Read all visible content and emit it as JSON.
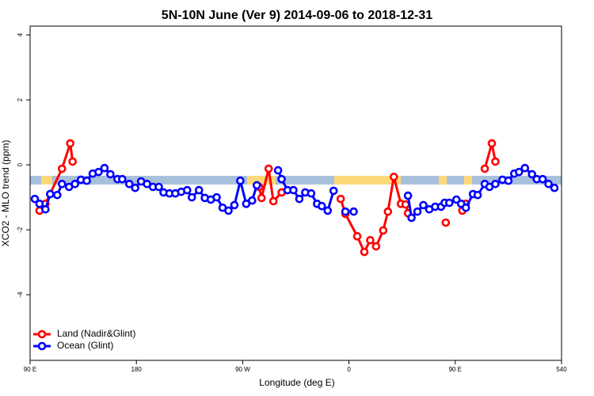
{
  "chart_data": {
    "type": "line",
    "title": "5N-10N June (Ver 9)   2014-09-06 to 2018-12-31",
    "x_label": "Longitude (deg E)",
    "y_label": "XCO2 - MLO trend (ppm)",
    "xlim": [
      90,
      540
    ],
    "xticks": [
      {
        "value": 90,
        "label": "90 E"
      },
      180,
      {
        "value": 270,
        "label": "90 W"
      },
      {
        "value": 360,
        "label": "0"
      },
      {
        "value": 450,
        "label": "90 E"
      },
      540
    ],
    "ylim": [
      -6.02,
      4.27
    ],
    "yticks": [
      -4,
      -2,
      0,
      2,
      4
    ],
    "legend": "bottomleft",
    "series": [
      {
        "name": "Land (Nadir&Glint)",
        "color": "#ff0000",
        "x": [
          98,
          103,
          117,
          124,
          126,
          200,
          284,
          286,
          292,
          296,
          303,
          330,
          353,
          357,
          367,
          373,
          378,
          383,
          389,
          393,
          398,
          404,
          408,
          410,
          425,
          442,
          450,
          456,
          459,
          467,
          475,
          481,
          484
        ],
        "values": [
          -1.41,
          -1.2,
          -0.12,
          0.66,
          0.1,
          null,
          -0.68,
          -1.02,
          -0.12,
          -1.12,
          -0.85,
          null,
          -1.05,
          -1.51,
          -2.2,
          -2.68,
          -2.32,
          -2.51,
          -2.02,
          -1.44,
          -0.37,
          -1.2,
          -1.22,
          -1.49,
          null,
          -1.78,
          null,
          -1.41,
          -1.2,
          null,
          -0.12,
          0.66,
          0.1
        ]
      },
      {
        "name": "Ocean (Glint)",
        "color": "#0000ff",
        "x": [
          94,
          98,
          103,
          107,
          113,
          117,
          123,
          128,
          133,
          138,
          143,
          148,
          153,
          158,
          164,
          168,
          174,
          179,
          184,
          189,
          194,
          199,
          203,
          208,
          213,
          218,
          223,
          227,
          233,
          238,
          243,
          248,
          253,
          258,
          263,
          268,
          273,
          278,
          282,
          291,
          300,
          303,
          308,
          313,
          318,
          323,
          328,
          333,
          337,
          342,
          347,
          352,
          357,
          364,
          387,
          410,
          413,
          418,
          423,
          428,
          433,
          438,
          441,
          445,
          451,
          455,
          459,
          465,
          469,
          475,
          479,
          484,
          490,
          495,
          500,
          504,
          509,
          515,
          519,
          524,
          529,
          534
        ],
        "values": [
          -1.05,
          -1.2,
          -1.37,
          -0.9,
          -0.93,
          -0.59,
          -0.68,
          -0.59,
          -0.46,
          -0.49,
          -0.27,
          -0.22,
          -0.1,
          -0.29,
          -0.44,
          -0.44,
          -0.59,
          -0.71,
          -0.51,
          -0.59,
          -0.68,
          -0.68,
          -0.85,
          -0.88,
          -0.88,
          -0.83,
          -0.78,
          -1.0,
          -0.78,
          -1.02,
          -1.07,
          -1.0,
          -1.32,
          -1.41,
          -1.24,
          -0.49,
          -1.2,
          -1.1,
          -0.63,
          null,
          -0.17,
          -0.44,
          -0.78,
          -0.78,
          -1.05,
          -0.85,
          -0.88,
          -1.2,
          -1.27,
          -1.41,
          -0.8,
          null,
          -1.44,
          -1.44,
          null,
          -0.95,
          -1.63,
          -1.44,
          -1.24,
          -1.37,
          -1.29,
          -1.29,
          -1.17,
          -1.17,
          -1.07,
          -1.2,
          -1.32,
          -0.9,
          -0.93,
          -0.59,
          -0.68,
          -0.59,
          -0.46,
          -0.49,
          -0.27,
          -0.22,
          -0.1,
          -0.29,
          -0.44,
          -0.44,
          -0.59,
          -0.71
        ]
      }
    ]
  }
}
